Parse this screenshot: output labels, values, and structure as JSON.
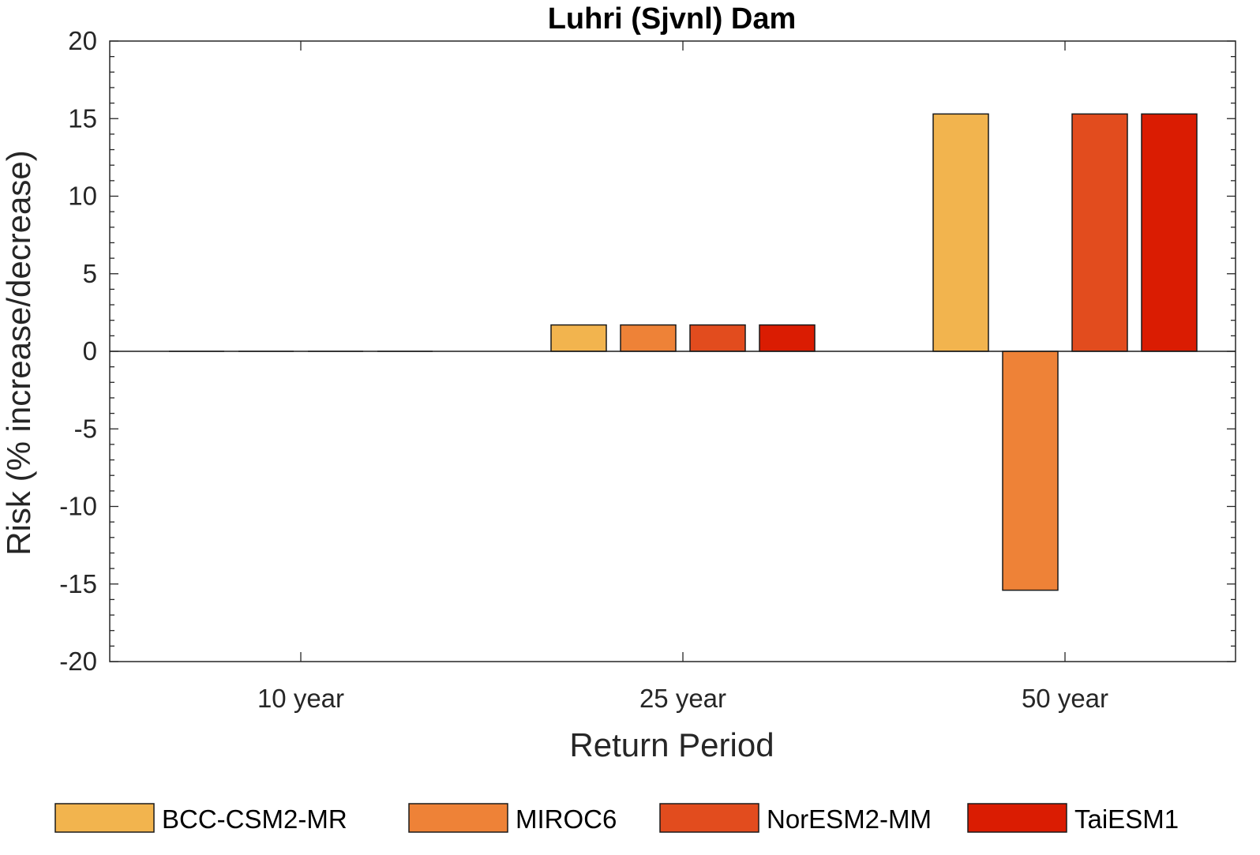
{
  "chart_data": {
    "type": "bar",
    "title": "Luhri (Sjvnl) Dam",
    "xlabel": "Return Period",
    "ylabel": "Risk (% increase/decrease)",
    "categories": [
      "10 year",
      "25 year",
      "50 year"
    ],
    "ylim": [
      -20,
      20
    ],
    "yticks": [
      20,
      15,
      10,
      5,
      0,
      -5,
      -10,
      -15,
      -20
    ],
    "ytick_labels": [
      "20",
      "15",
      "10",
      "5",
      "0",
      "-5",
      "-10",
      "-15",
      "-20"
    ],
    "grid": false,
    "legend_position": "bottom",
    "series": [
      {
        "name": "BCC-CSM2-MR",
        "color": "#F2B44E",
        "values": [
          0,
          1.7,
          15.3
        ]
      },
      {
        "name": "MIROC6",
        "color": "#EE8237",
        "values": [
          0,
          1.7,
          -15.4
        ]
      },
      {
        "name": "NorESM2-MM",
        "color": "#E24C1E",
        "values": [
          0,
          1.7,
          15.3
        ]
      },
      {
        "name": "TaiESM1",
        "color": "#DA1C02",
        "values": [
          0,
          1.7,
          15.3
        ]
      }
    ]
  }
}
